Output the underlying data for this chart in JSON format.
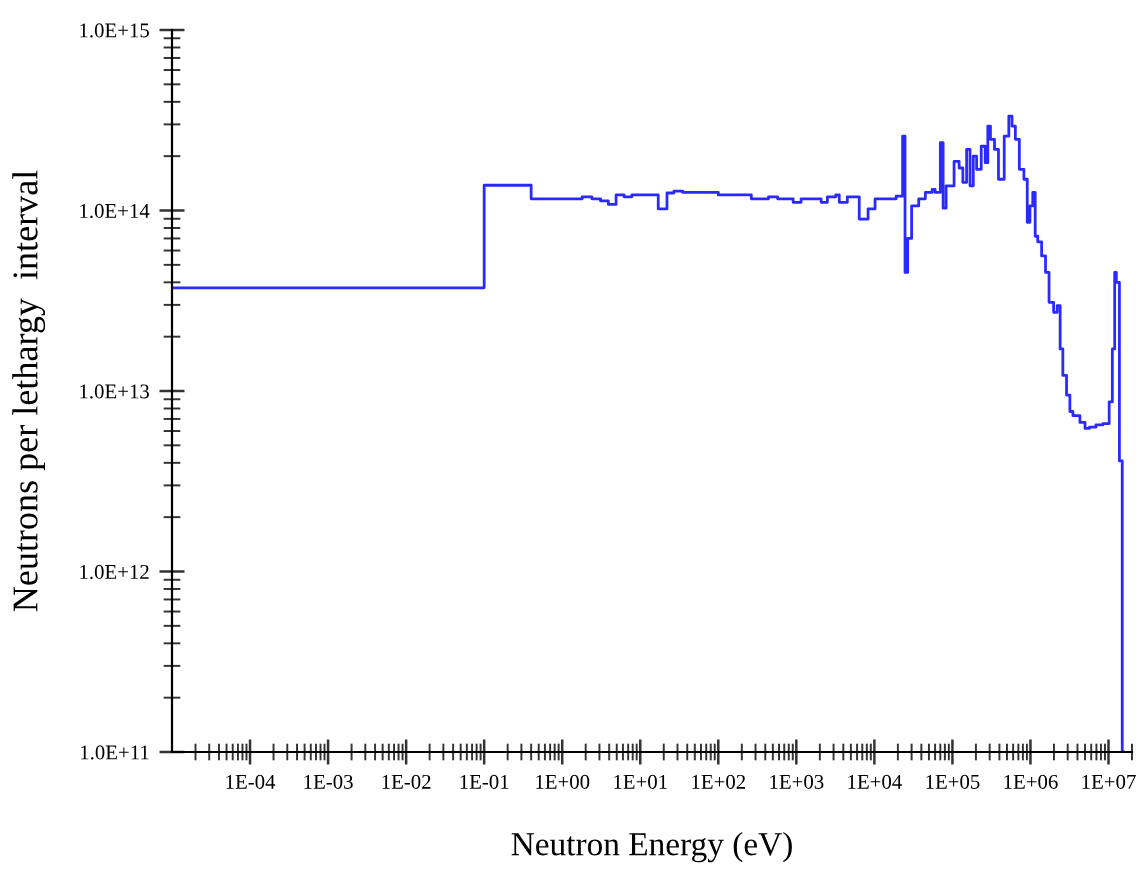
{
  "chart_data": {
    "type": "step",
    "xlabel": "Neutron Energy (eV)",
    "ylabel": "Neutrons per lethargy  interval",
    "log": "xy",
    "grid": false,
    "legend": false,
    "xlim": [
      1e-05,
      20000000.0
    ],
    "ylim": [
      100000000000.0,
      1000000000000000.0
    ],
    "xticks": [
      {
        "value": 0.0001,
        "label": "1E-04"
      },
      {
        "value": 0.001,
        "label": "1E-03"
      },
      {
        "value": 0.01,
        "label": "1E-02"
      },
      {
        "value": 0.1,
        "label": "1E-01"
      },
      {
        "value": 1,
        "label": "1E+00"
      },
      {
        "value": 10,
        "label": "1E+01"
      },
      {
        "value": 100,
        "label": "1E+02"
      },
      {
        "value": 1000,
        "label": "1E+03"
      },
      {
        "value": 10000.0,
        "label": "1E+04"
      },
      {
        "value": 100000.0,
        "label": "1E+05"
      },
      {
        "value": 1000000.0,
        "label": "1E+06"
      },
      {
        "value": 10000000.0,
        "label": "1E+07"
      }
    ],
    "yticks": [
      {
        "value": 100000000000.0,
        "label": "1.0E+11"
      },
      {
        "value": 1000000000000.0,
        "label": "1.0E+12"
      },
      {
        "value": 10000000000000.0,
        "label": "1.0E+13"
      },
      {
        "value": 100000000000000.0,
        "label": "1.0E+14"
      },
      {
        "value": 1000000000000000.0,
        "label": "1.0E+15"
      }
    ],
    "series": [
      {
        "color": "#2a2aff",
        "x": [
          1e-05,
          0.1,
          0.4,
          1.8,
          2.4,
          3.1,
          3.9,
          4.9,
          6.2,
          7.8,
          17,
          22,
          27,
          35,
          100,
          265,
          440,
          575,
          910,
          1150,
          2080,
          2500,
          3200,
          3550,
          4500,
          6400,
          8300,
          10200,
          19000,
          23000,
          24700,
          26700,
          30000,
          37000,
          45000,
          55000,
          60000,
          70000,
          76000,
          83000,
          105000,
          122000,
          136000,
          152000,
          168000,
          185000,
          204000,
          234000,
          263000,
          284000,
          307000,
          346000,
          389000,
          461000,
          528000,
          580000,
          640000,
          720000,
          824000,
          910000,
          985000,
          1070000.0,
          1150000.0,
          1240000.0,
          1390000.0,
          1560000.0,
          1730000.0,
          1980000.0,
          2200000.0,
          2400000.0,
          2600000.0,
          2900000.0,
          3200000.0,
          3500000.0,
          4300000.0,
          5000000.0,
          5700000.0,
          6900000.0,
          8500000.0,
          10200000.0,
          11200000.0,
          12000000.0,
          12600000.0,
          13800000.0,
          15000000.0,
          15500000.0
        ],
        "values": [
          37300000000000.0,
          138000000000000.0,
          116000000000000.0,
          119000000000000.0,
          116000000000000.0,
          113000000000000.0,
          108000000000000.0,
          122000000000000.0,
          119000000000000.0,
          122000000000000.0,
          102000000000000.0,
          125000000000000.0,
          128000000000000.0,
          126000000000000.0,
          122000000000000.0,
          116000000000000.0,
          119000000000000.0,
          116000000000000.0,
          111000000000000.0,
          116000000000000.0,
          111000000000000.0,
          119000000000000.0,
          122000000000000.0,
          111000000000000.0,
          119000000000000.0,
          89600000000000.0,
          102000000000000.0,
          116000000000000.0,
          120000000000000.0,
          258000000000000.0,
          45400000000000.0,
          70000000000000.0,
          106000000000000.0,
          116000000000000.0,
          126000000000000.0,
          131000000000000.0,
          126000000000000.0,
          238000000000000.0,
          103000000000000.0,
          137000000000000.0,
          187000000000000.0,
          172000000000000.0,
          143000000000000.0,
          218000000000000.0,
          137000000000000.0,
          200000000000000.0,
          169000000000000.0,
          227000000000000.0,
          184000000000000.0,
          293000000000000.0,
          248000000000000.0,
          218000000000000.0,
          149000000000000.0,
          258000000000000.0,
          333000000000000.0,
          293000000000000.0,
          248000000000000.0,
          169000000000000.0,
          149000000000000.0,
          86000000000000.0,
          106000000000000.0,
          126000000000000.0,
          72000000000000.0,
          67000000000000.0,
          56000000000000.0,
          45400000000000.0,
          31000000000000.0,
          27300000000000.0,
          29700000000000.0,
          17100000000000.0,
          12200000000000.0,
          9500000000000.0,
          7700000000000.0,
          7300000000000.0,
          6700000000000.0,
          6200000000000.0,
          6300000000000.0,
          6500000000000.0,
          6600000000000.0,
          8700000000000.0,
          17100000000000.0,
          45400000000000.0,
          40000000000000.0,
          4100000000000.0,
          100000000000.0,
          100000000000.0
        ]
      }
    ]
  }
}
